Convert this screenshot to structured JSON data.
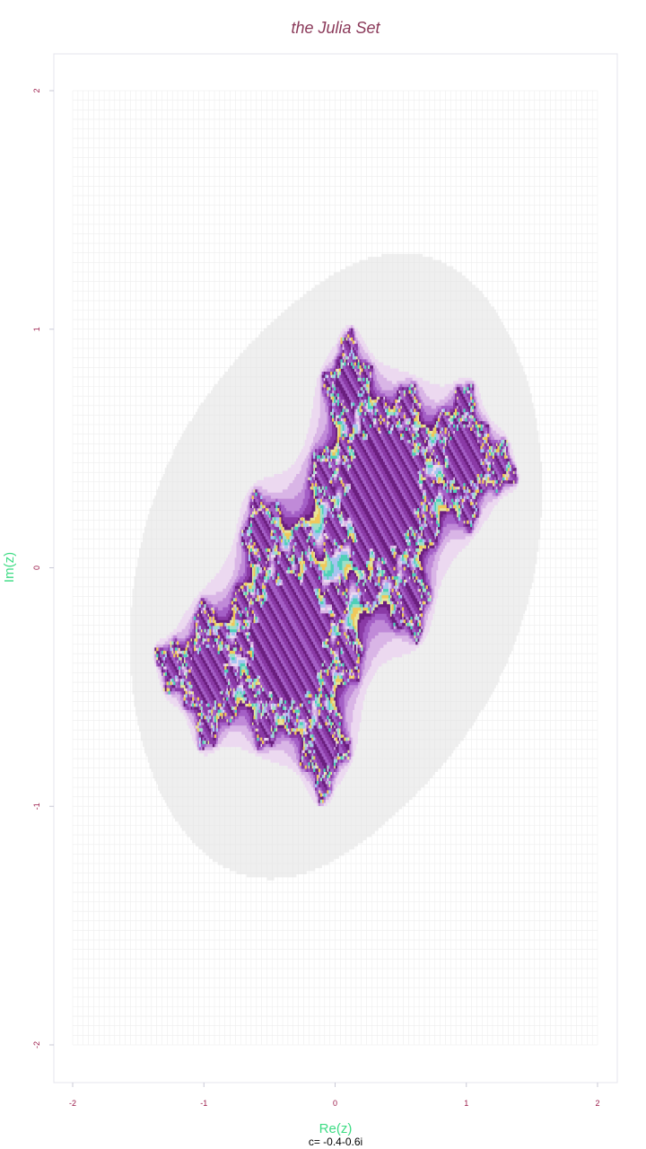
{
  "chart_data": {
    "type": "heatmap",
    "title": "the Julia Set",
    "xlabel": "Re(z)",
    "ylabel": "Im(z)",
    "subtitle": "c= -0.4-0.6i",
    "c": {
      "re": -0.4,
      "im": -0.6
    },
    "xlim": [
      -2,
      2
    ],
    "ylim": [
      -2,
      2
    ],
    "x_ticks": [
      -2,
      -1,
      0,
      1,
      2
    ],
    "y_ticks": [
      -2,
      -1,
      0,
      1,
      2
    ],
    "x_tick_labels": [
      "-2",
      "-1",
      "0",
      "1",
      "2"
    ],
    "y_tick_labels": [
      "-2",
      "-1",
      "0",
      "1",
      "2"
    ],
    "grid": false,
    "legend": "none",
    "max_iterations": 40
  },
  "colors": {
    "title": "#8b3a5a",
    "axis_label": "#3ddc84",
    "tick_label": "#9b1b4a",
    "subtitle": "#000000",
    "panel_border": "#e4e4ec",
    "background_grid": "#eeeeee",
    "halo": "#e2e2e2",
    "palette": [
      "#ecd9f0",
      "#d9b5e6",
      "#c08ad8",
      "#a45fc6",
      "#8a3aa6",
      "#6a1e7e",
      "#e8e59a",
      "#f0c85a",
      "#9fe0c8",
      "#4fd0b8",
      "#a7c4f0",
      "#ffffff"
    ]
  }
}
